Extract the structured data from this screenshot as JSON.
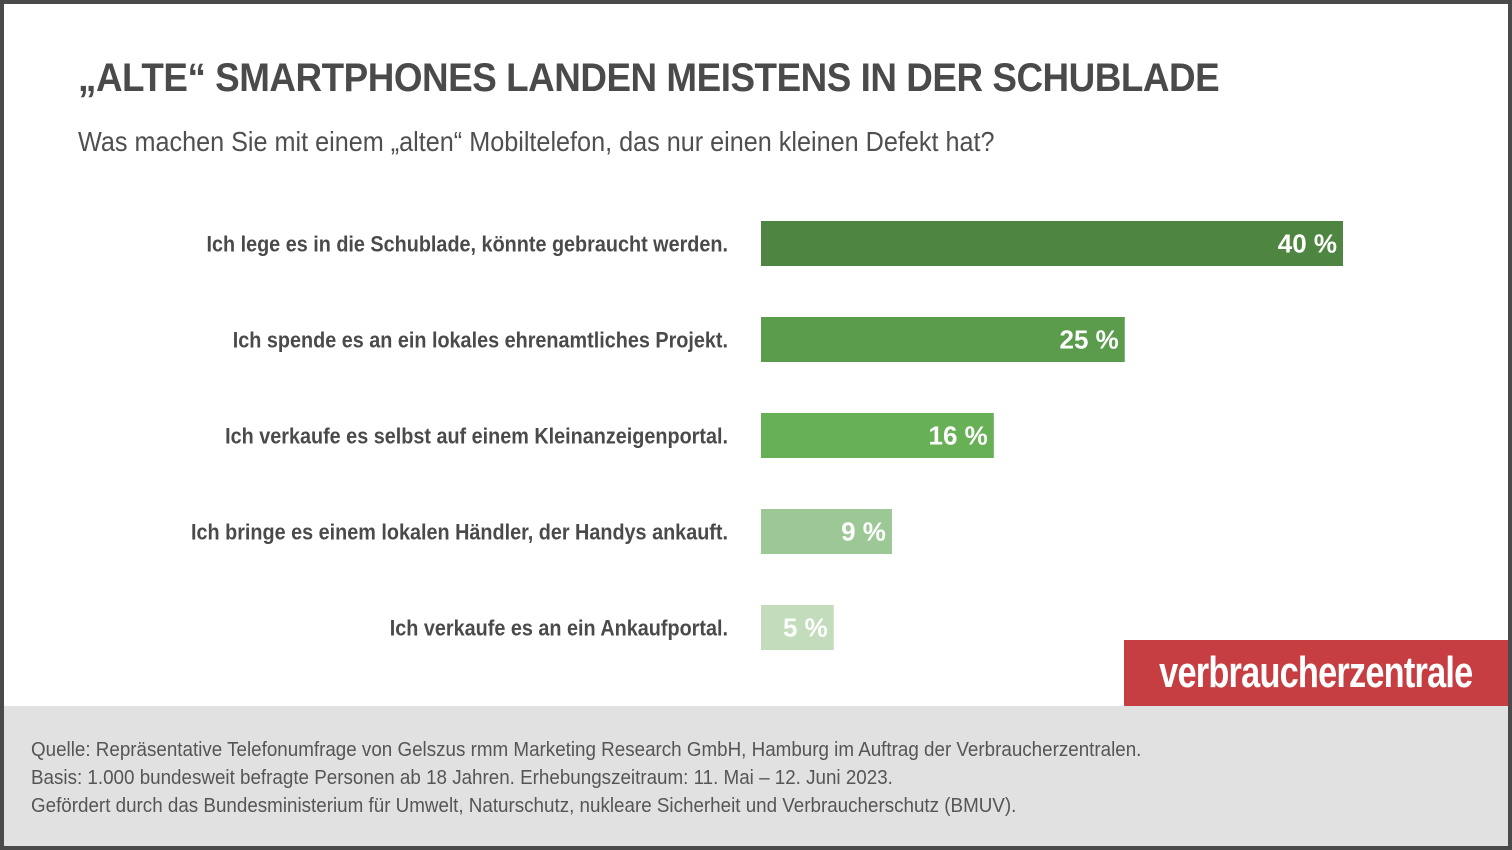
{
  "header": {
    "title": "„ALTE“ SMARTPHONES LANDEN MEISTENS IN DER SCHUBLADE",
    "subtitle": "Was machen Sie mit einem „alten“ Mobiltelefon, das nur einen kleinen Defekt hat?"
  },
  "chart_data": {
    "type": "bar",
    "orientation": "horizontal",
    "title": "„ALTE“ SMARTPHONES LANDEN MEISTENS IN DER SCHUBLADE",
    "subtitle": "Was machen Sie mit einem „alten“ Mobiltelefon, das nur einen kleinen Defekt hat?",
    "xlabel": "",
    "ylabel": "",
    "unit": "%",
    "xlim": [
      0,
      40
    ],
    "grid": false,
    "legend": "none",
    "categories": [
      "Ich lege es in die Schublade, könnte gebraucht werden.",
      "Ich spende es an ein lokales ehrenamtliches Projekt.",
      "Ich verkaufe es selbst auf einem Kleinanzeigenportal.",
      "Ich bringe es einem lokalen Händler, der Handys ankauft.",
      "Ich verkaufe es an ein Ankaufportal."
    ],
    "values": [
      40,
      25,
      16,
      9,
      5
    ],
    "value_labels": [
      "40 %",
      "25 %",
      "16 %",
      "9 %",
      "5 %"
    ],
    "colors": [
      "#4e8540",
      "#5b9c4c",
      "#67b056",
      "#9cc896",
      "#c2dcbc"
    ]
  },
  "logo": {
    "text": "verbraucherzentrale",
    "color": "#c73e42"
  },
  "footer": {
    "lines": [
      "Quelle: Repräsentative Telefonumfrage von Gelszus rmm Marketing Research GmbH, Hamburg im Auftrag der Verbraucherzentralen.",
      "Basis: 1.000 bundesweit befragte Personen ab 18 Jahren. Erhebungszeitraum: 11. Mai – 12. Juni 2023.",
      "Gefördert durch das Bundesministerium für Umwelt, Naturschutz, nukleare Sicherheit und Verbraucherschutz (BMUV)."
    ]
  }
}
